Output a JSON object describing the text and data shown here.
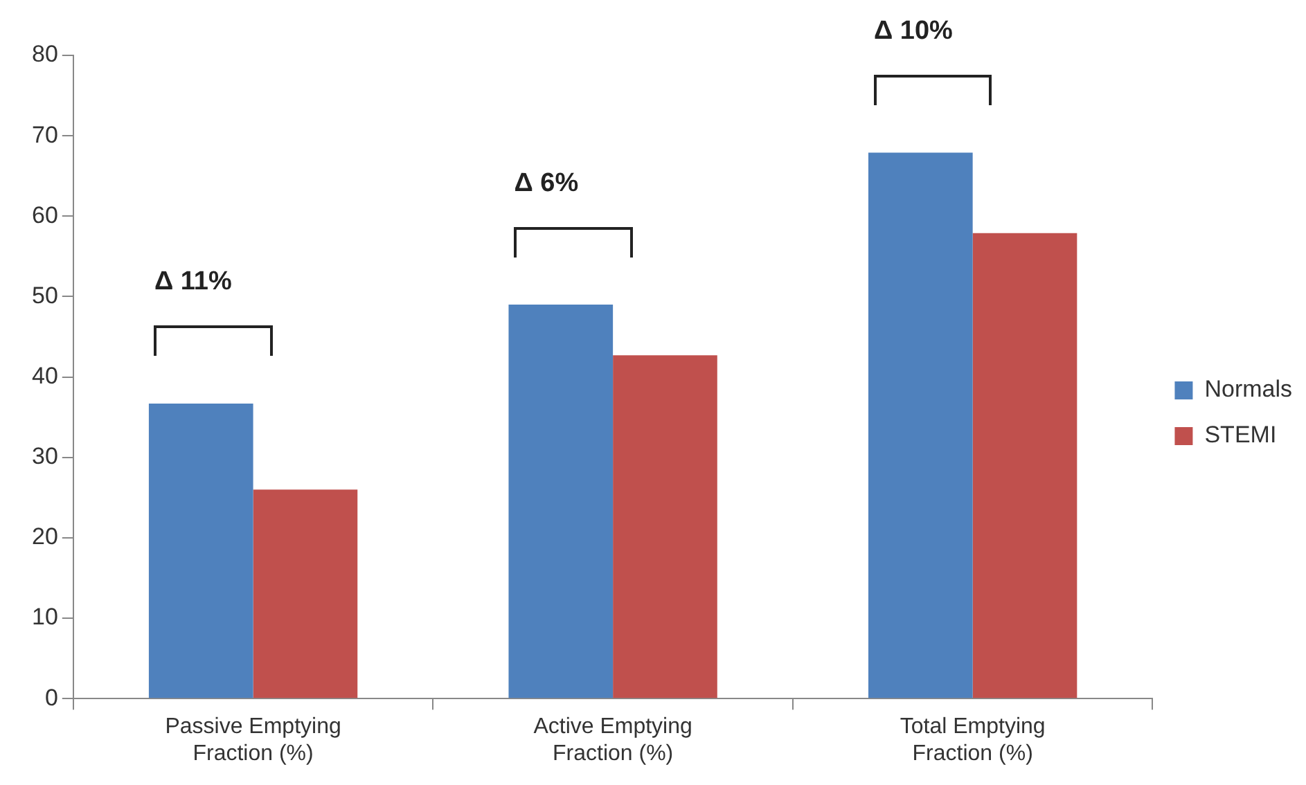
{
  "chart_data": {
    "type": "bar",
    "categories": [
      "Passive Emptying Fraction (%)",
      "Active Emptying Fraction (%)",
      "Total Emptying Fraction (%)"
    ],
    "series": [
      {
        "name": "Normals",
        "color": "#4f81bd",
        "values": [
          36.7,
          49,
          67.9
        ]
      },
      {
        "name": "STEMI",
        "color": "#c0504d",
        "values": [
          26,
          42.7,
          57.9
        ]
      }
    ],
    "ylim": [
      0,
      80
    ],
    "yticks": [
      0,
      10,
      20,
      30,
      40,
      50,
      60,
      70,
      80
    ],
    "grid": false,
    "legend": "right",
    "annotations": [
      "Δ 11%",
      "Δ 6%",
      "Δ 10%"
    ]
  }
}
